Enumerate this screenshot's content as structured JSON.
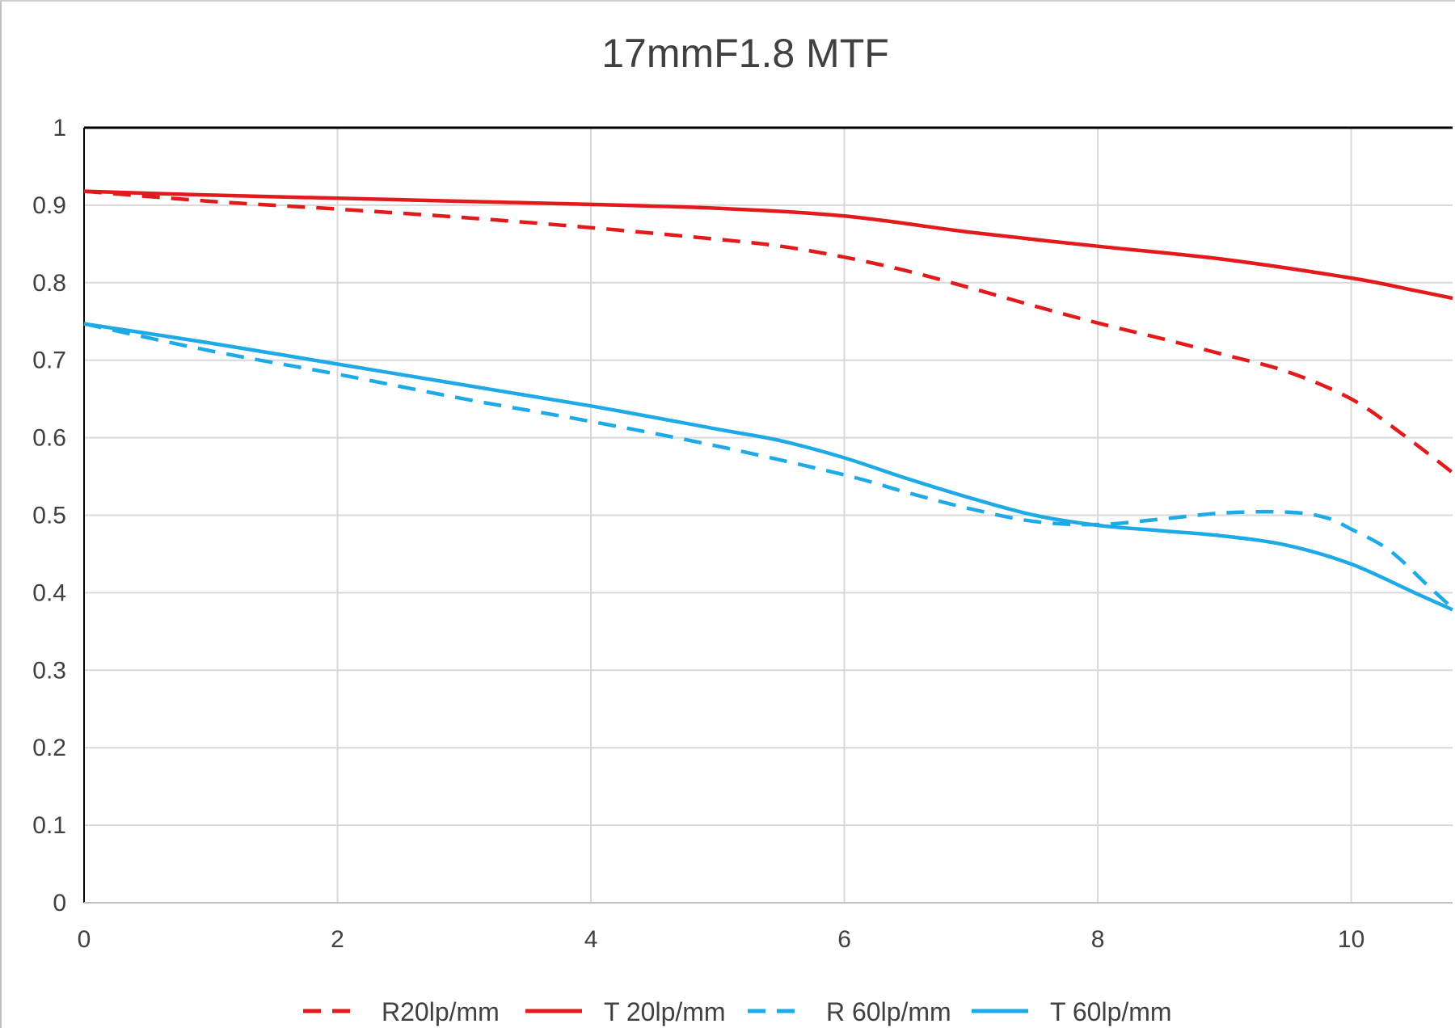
{
  "chart_data": {
    "type": "line",
    "title": "17mmF1.8  MTF",
    "xlabel": "",
    "ylabel": "",
    "xlim": [
      0,
      10.8
    ],
    "ylim": [
      0,
      1
    ],
    "x_ticks": [
      "0",
      "2",
      "4",
      "6",
      "8",
      "10"
    ],
    "y_ticks": [
      "0",
      "0.1",
      "0.2",
      "0.3",
      "0.4",
      "0.5",
      "0.6",
      "0.7",
      "0.8",
      "0.9",
      "1"
    ],
    "grid": true,
    "legend_position": "bottom",
    "series": [
      {
        "name": "R20lp/mm",
        "color": "#e31a1c",
        "dash": "dashed",
        "x": [
          0,
          1,
          2,
          3,
          4,
          5,
          5.5,
          6,
          6.5,
          7,
          7.5,
          8,
          8.5,
          9,
          9.5,
          10,
          10.4,
          10.8
        ],
        "y": [
          0.918,
          0.905,
          0.895,
          0.884,
          0.871,
          0.856,
          0.847,
          0.833,
          0.815,
          0.793,
          0.77,
          0.748,
          0.728,
          0.707,
          0.685,
          0.65,
          0.605,
          0.555
        ]
      },
      {
        "name": "T 20lp/mm",
        "color": "#e31a1c",
        "dash": "solid",
        "x": [
          0,
          1,
          2,
          3,
          4,
          5,
          6,
          7,
          8,
          9,
          10,
          10.5,
          10.8
        ],
        "y": [
          0.918,
          0.913,
          0.909,
          0.905,
          0.901,
          0.896,
          0.886,
          0.865,
          0.847,
          0.83,
          0.806,
          0.79,
          0.78
        ]
      },
      {
        "name": "R 60lp/mm",
        "color": "#1eaae6",
        "dash": "dashed",
        "x": [
          0,
          1,
          2,
          3,
          4,
          5,
          6,
          6.5,
          7,
          7.5,
          8,
          8.5,
          9,
          9.5,
          9.8,
          10,
          10.3,
          10.6,
          10.8
        ],
        "y": [
          0.747,
          0.712,
          0.682,
          0.65,
          0.621,
          0.589,
          0.552,
          0.529,
          0.508,
          0.492,
          0.488,
          0.495,
          0.503,
          0.504,
          0.497,
          0.482,
          0.455,
          0.41,
          0.38
        ]
      },
      {
        "name": "T 60lp/mm",
        "color": "#1eaae6",
        "dash": "solid",
        "x": [
          0,
          1,
          2,
          3,
          4,
          5,
          5.5,
          6,
          6.5,
          7,
          7.5,
          8,
          8.5,
          9,
          9.5,
          10,
          10.5,
          10.8
        ],
        "y": [
          0.747,
          0.722,
          0.695,
          0.668,
          0.641,
          0.611,
          0.596,
          0.574,
          0.547,
          0.522,
          0.5,
          0.487,
          0.48,
          0.473,
          0.461,
          0.437,
          0.4,
          0.378
        ]
      }
    ]
  }
}
